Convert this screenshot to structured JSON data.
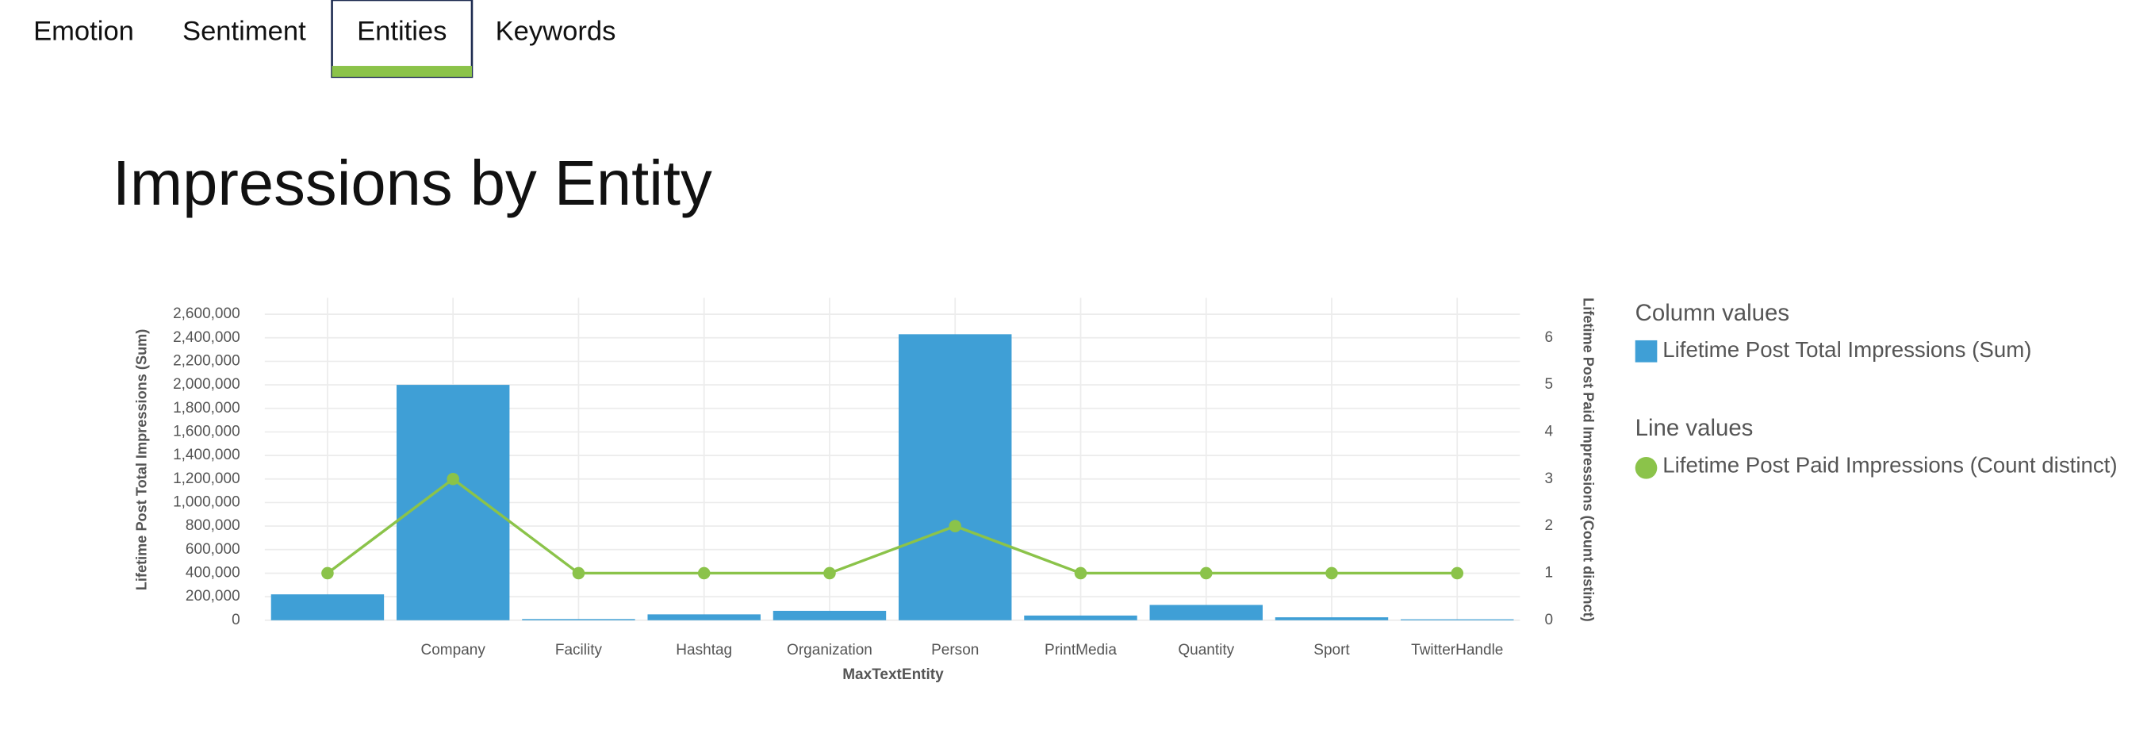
{
  "tabs": [
    "Emotion",
    "Sentiment",
    "Entities",
    "Keywords"
  ],
  "chart_data": {
    "type": "bar",
    "title": "Impressions by Entity",
    "x_label": "MaxTextEntity",
    "y_label": "Lifetime Post Total Impressions (Sum)",
    "y2_label": "Lifetime Post Paid Impressions (Count distinct)",
    "legend_titles": {
      "bar": "Column values",
      "line": "Line values"
    },
    "categories": [
      null,
      "Company",
      "Facility",
      "Hashtag",
      "Organization",
      "Person",
      "PrintMedia",
      "Quantity",
      "Sport",
      "TwitterHandle"
    ],
    "series": [
      {
        "name": "Lifetime Post Total Impressions (Sum)",
        "type": "bar",
        "color": "#3f9fd6",
        "values": [
          220000,
          2000000,
          10000,
          50000,
          80000,
          2430000,
          40000,
          130000,
          25000,
          8000
        ]
      },
      {
        "name": "Lifetime Post Paid Impressions (Count distinct)",
        "type": "line",
        "axis": "y2",
        "color": "#8bc34a",
        "values": [
          1,
          3,
          1,
          1,
          1,
          2,
          1,
          1,
          1,
          1
        ]
      }
    ],
    "ylim": [
      0,
      2740000
    ],
    "yticks": [
      0,
      {
        "value": 200000,
        "label": "200,000"
      },
      {
        "value": 400000,
        "label": "400,000"
      },
      {
        "value": 600000,
        "label": "600,000"
      },
      {
        "value": 800000,
        "label": "800,000"
      },
      {
        "value": 1000000,
        "label": "1,000,000"
      },
      {
        "value": 1200000,
        "label": "1,200,000"
      },
      {
        "value": 1400000,
        "label": "1,400,000"
      },
      {
        "value": 1600000,
        "label": "1,600,000"
      },
      {
        "value": 1800000,
        "label": "1,800,000"
      },
      {
        "value": 2000000,
        "label": "2,000,000"
      },
      {
        "value": 2200000,
        "label": "2,200,000"
      },
      {
        "value": 2400000,
        "label": "2,400,000"
      },
      {
        "value": 2600000,
        "label": "2,600,000"
      }
    ],
    "y2lim": [
      0,
      6.85
    ],
    "y2ticks": [
      0,
      1,
      2,
      3,
      4,
      5,
      6
    ],
    "grid": true
  }
}
